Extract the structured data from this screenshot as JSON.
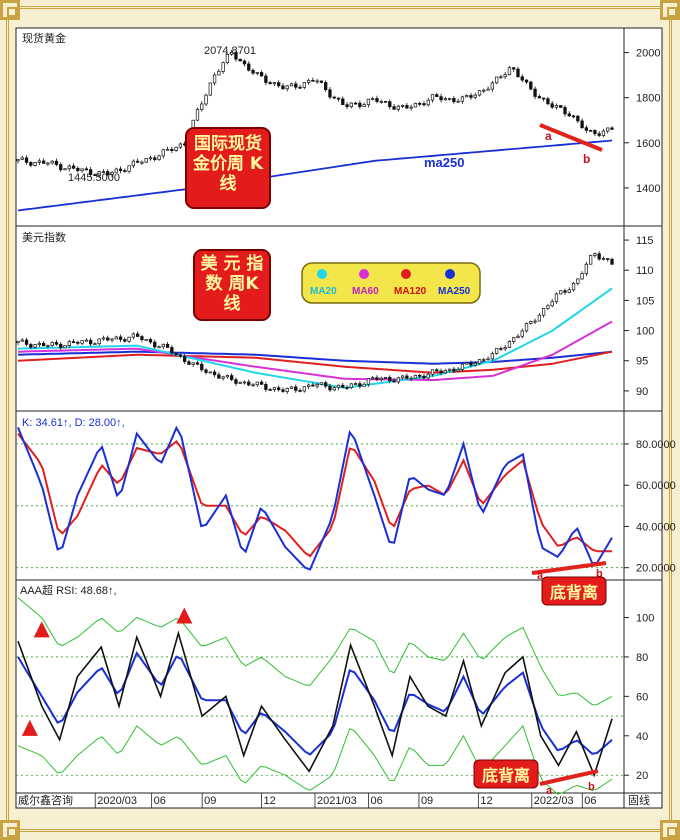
{
  "footer": {
    "source": "威尔鑫咨询",
    "right_label": "固线"
  },
  "time_axis": {
    "labels": [
      "2020/03",
      "06",
      "09",
      "12",
      "2021/03",
      "06",
      "09",
      "12",
      "2022/03",
      "06",
      "09"
    ],
    "positions": [
      0.13,
      0.225,
      0.31,
      0.41,
      0.5,
      0.59,
      0.675,
      0.775,
      0.865,
      0.95,
      1.04
    ]
  },
  "chart_data": [
    {
      "id": "gold",
      "type": "candlestick",
      "title": "现货黄金",
      "annotation_title": "国际现货金价周 K线",
      "high_label": "2074.8701",
      "low_label": "1445.5000",
      "ma_label": "ma250",
      "point_labels": [
        "a",
        "b"
      ],
      "yticks": [
        1400,
        1600,
        1800,
        2000
      ],
      "ylim": [
        1240,
        2100
      ],
      "x": [
        0,
        0.05,
        0.1,
        0.15,
        0.2,
        0.25,
        0.28,
        0.3,
        0.33,
        0.36,
        0.4,
        0.45,
        0.5,
        0.55,
        0.6,
        0.65,
        0.7,
        0.75,
        0.8,
        0.83,
        0.86,
        0.9,
        0.93,
        0.96,
        1.0
      ],
      "close": [
        1520,
        1510,
        1480,
        1460,
        1510,
        1560,
        1600,
        1720,
        1900,
        2000,
        1900,
        1840,
        1880,
        1760,
        1790,
        1750,
        1800,
        1790,
        1860,
        1940,
        1840,
        1760,
        1730,
        1640,
        1660
      ],
      "ma250_x": [
        0,
        0.3,
        0.6,
        1.0
      ],
      "ma250": [
        1300,
        1400,
        1520,
        1610
      ]
    },
    {
      "id": "dxy",
      "type": "candlestick",
      "title": "美元指数",
      "annotation_title": "美 元 指 数 周K线",
      "yticks": [
        90,
        95,
        100,
        105,
        110,
        115
      ],
      "ylim": [
        87,
        117
      ],
      "legend": [
        "MA20",
        "MA60",
        "MA120",
        "MA250"
      ],
      "x": [
        0,
        0.05,
        0.1,
        0.15,
        0.2,
        0.25,
        0.3,
        0.35,
        0.4,
        0.45,
        0.5,
        0.55,
        0.6,
        0.65,
        0.7,
        0.75,
        0.8,
        0.85,
        0.88,
        0.91,
        0.94,
        0.97,
        1.0
      ],
      "close": [
        98,
        97.5,
        98,
        98.5,
        99,
        97,
        94,
        92,
        91,
        90,
        91,
        90.5,
        92,
        92,
        93,
        94,
        96,
        100,
        103,
        106,
        108,
        113,
        111
      ],
      "ma_x": [
        0,
        0.2,
        0.4,
        0.55,
        0.7,
        0.8,
        0.9,
        1.0
      ],
      "ma20": [
        97,
        97.5,
        93,
        90.5,
        92.5,
        95,
        100,
        107
      ],
      "ma60": [
        96.5,
        97,
        94,
        92,
        91.8,
        92.5,
        96,
        101.5
      ],
      "ma120": [
        95,
        96,
        95.5,
        94,
        93,
        93.5,
        94.5,
        96.5
      ],
      "ma250": [
        96,
        96.5,
        96,
        95,
        94.5,
        94.8,
        95.5,
        96.5
      ]
    },
    {
      "id": "kd",
      "type": "line",
      "title": "K: 34.61↑, D: 28.00↑,",
      "annotation_title": "底背离",
      "point_labels": [
        "a",
        "b"
      ],
      "yticks": [
        "20.0000",
        "40.0000",
        "60.0000",
        "80.0000"
      ],
      "ylim": [
        15,
        95
      ],
      "x": [
        0,
        0.04,
        0.07,
        0.1,
        0.14,
        0.17,
        0.2,
        0.24,
        0.27,
        0.31,
        0.35,
        0.38,
        0.41,
        0.45,
        0.49,
        0.53,
        0.56,
        0.6,
        0.63,
        0.66,
        0.69,
        0.72,
        0.75,
        0.78,
        0.82,
        0.85,
        0.88,
        0.91,
        0.94,
        0.97,
        1.0
      ],
      "K": [
        88,
        60,
        25,
        55,
        80,
        52,
        85,
        70,
        90,
        38,
        55,
        25,
        50,
        30,
        18,
        45,
        88,
        55,
        28,
        65,
        58,
        55,
        80,
        45,
        70,
        75,
        30,
        25,
        40,
        20,
        34.61
      ],
      "D": [
        85,
        70,
        35,
        45,
        70,
        60,
        78,
        75,
        82,
        50,
        50,
        35,
        45,
        38,
        25,
        40,
        80,
        62,
        38,
        58,
        60,
        55,
        72,
        50,
        65,
        72,
        42,
        30,
        35,
        28,
        28
      ]
    },
    {
      "id": "rsi",
      "type": "line",
      "title": "AAA超 RSI: 48.68↑,",
      "annotation_title": "底背离",
      "point_labels": [
        "a",
        "b"
      ],
      "yticks": [
        20,
        40,
        60,
        80,
        100
      ],
      "ylim": [
        12,
        118
      ],
      "x": [
        0,
        0.04,
        0.07,
        0.1,
        0.14,
        0.17,
        0.2,
        0.24,
        0.27,
        0.31,
        0.35,
        0.38,
        0.41,
        0.45,
        0.49,
        0.53,
        0.56,
        0.6,
        0.63,
        0.66,
        0.69,
        0.72,
        0.75,
        0.78,
        0.82,
        0.85,
        0.88,
        0.91,
        0.94,
        0.97,
        1.0
      ],
      "rsi": [
        88,
        55,
        38,
        70,
        85,
        55,
        90,
        60,
        92,
        50,
        60,
        30,
        55,
        38,
        22,
        45,
        86,
        55,
        30,
        70,
        55,
        50,
        78,
        45,
        72,
        80,
        40,
        25,
        42,
        20,
        48.68
      ],
      "rsi_ma": [
        80,
        60,
        45,
        62,
        75,
        60,
        82,
        65,
        82,
        58,
        58,
        40,
        52,
        42,
        30,
        42,
        75,
        58,
        40,
        62,
        56,
        52,
        70,
        50,
        65,
        72,
        45,
        32,
        38,
        30,
        38
      ],
      "upper_band": [
        110,
        100,
        85,
        90,
        100,
        92,
        100,
        95,
        100,
        85,
        90,
        75,
        80,
        70,
        65,
        80,
        95,
        88,
        70,
        88,
        80,
        78,
        92,
        78,
        90,
        95,
        75,
        60,
        62,
        55,
        60
      ],
      "lower_band": [
        35,
        30,
        20,
        30,
        40,
        30,
        45,
        35,
        40,
        25,
        30,
        15,
        25,
        20,
        12,
        20,
        45,
        30,
        15,
        35,
        25,
        25,
        40,
        22,
        35,
        45,
        18,
        10,
        15,
        12,
        18
      ]
    }
  ]
}
